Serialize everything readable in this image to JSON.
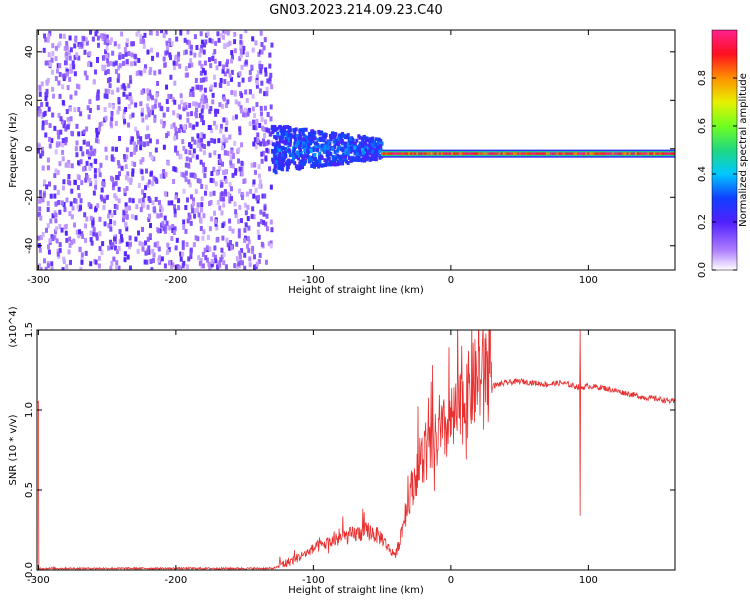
{
  "title": "GN03.2023.214.09.23.C40",
  "chart_data": [
    {
      "type": "heatmap",
      "xlabel": "Height of straight line (km)",
      "ylabel": "Frequency (Hz)",
      "xlim": [
        -301,
        163
      ],
      "ylim": [
        -50,
        49
      ],
      "xticks": [
        -300,
        -200,
        -100,
        0,
        100
      ],
      "xtick_labels": [
        "-300",
        "-200",
        "-100",
        "0",
        "100"
      ],
      "yticks": [
        40,
        20,
        0,
        -20,
        -40
      ],
      "ytick_labels": [
        "40",
        "20",
        "0",
        "-20",
        "-40"
      ],
      "colorbar": {
        "label": "Normalized spectral amplitude",
        "range": [
          0,
          1
        ],
        "ticks": [
          0.0,
          0.2,
          0.4,
          0.6,
          0.8
        ],
        "tick_labels": [
          "0.0",
          "0.2",
          "0.4",
          "0.6",
          "0.8"
        ],
        "colormap": [
          "#ffffff",
          "#b080ff",
          "#5020ff",
          "#1040ff",
          "#00c8ff",
          "#20d880",
          "#70ff20",
          "#e8f000",
          "#ff9000",
          "#ff1020",
          "#ff2090"
        ]
      },
      "regions": [
        {
          "description": "noise",
          "x_range": [
            -300,
            -130
          ],
          "freq_range": [
            -50,
            49
          ],
          "amplitude": [
            0.05,
            0.2
          ]
        },
        {
          "description": "onset",
          "x_range": [
            -130,
            -50
          ],
          "freq_range": [
            -10,
            10
          ],
          "amplitude": [
            0.2,
            0.4
          ]
        },
        {
          "description": "signal line",
          "x_range": [
            -50,
            163
          ],
          "freq_center": -2,
          "amplitude": [
            0.8,
            1.0
          ]
        }
      ],
      "grid": false
    },
    {
      "type": "line",
      "xlabel": "Height of straight line (km)",
      "ylabel": "SNR (10 * v/v)",
      "y_multiplier": "(x10^4)",
      "xlim": [
        -301,
        163
      ],
      "ylim": [
        0,
        1.5
      ],
      "xticks": [
        -300,
        -200,
        -100,
        0,
        100
      ],
      "xtick_labels": [
        "-300",
        "-200",
        "-100",
        "0",
        "100"
      ],
      "yticks": [
        0.0,
        0.5,
        1.0,
        1.5
      ],
      "ytick_labels": [
        "0.0",
        "0.5",
        "1.0",
        "1.5"
      ],
      "color": "#e83030",
      "series": [
        {
          "x": [
            -300,
            -250,
            -200,
            -150,
            -130,
            -120,
            -110,
            -100,
            -90,
            -80,
            -70,
            -60,
            -50,
            -45,
            -40,
            -35,
            -30,
            -25,
            -20,
            -15,
            -10,
            -5,
            0,
            5,
            10,
            15,
            20,
            25,
            30,
            40,
            50,
            60,
            70,
            80,
            90,
            95,
            100,
            110,
            120,
            130,
            140,
            150,
            163
          ],
          "y": [
            0.01,
            0.01,
            0.01,
            0.01,
            0.01,
            0.03,
            0.07,
            0.12,
            0.15,
            0.18,
            0.2,
            0.22,
            0.18,
            0.12,
            0.08,
            0.25,
            0.42,
            0.55,
            0.62,
            0.68,
            0.72,
            0.78,
            0.82,
            0.88,
            0.95,
            1.02,
            1.08,
            1.12,
            1.15,
            1.17,
            1.18,
            1.17,
            1.16,
            1.17,
            1.15,
            1.14,
            1.15,
            1.14,
            1.12,
            1.1,
            1.08,
            1.07,
            1.05
          ]
        }
      ],
      "annotations": [
        {
          "x": 94,
          "y": 1.5,
          "description": "spike"
        },
        {
          "x": 94,
          "y": 0.34,
          "description": "dip"
        }
      ],
      "grid": false
    }
  ]
}
